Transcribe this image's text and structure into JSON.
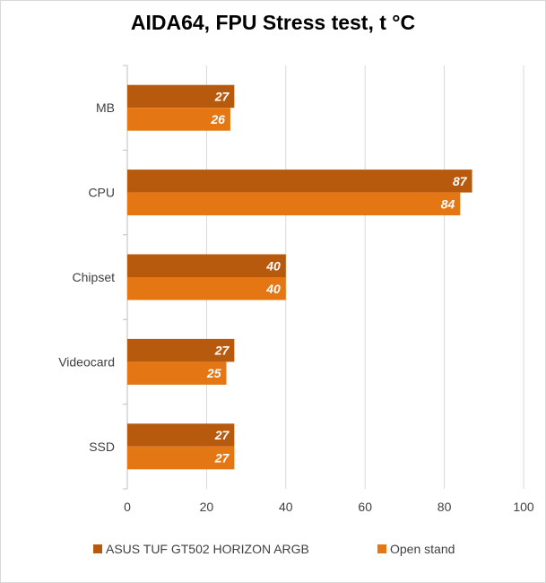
{
  "chart_data": {
    "type": "bar",
    "orientation": "horizontal",
    "title": "AIDA64, FPU Stress test, t °C",
    "categories": [
      "MB",
      "CPU",
      "Chipset",
      "Videocard",
      "SSD"
    ],
    "series": [
      {
        "name": "ASUS TUF GT502 HORIZON ARGB",
        "color": "#b85a0e",
        "values": [
          27,
          87,
          40,
          27,
          27
        ]
      },
      {
        "name": "Open stand",
        "color": "#e47714",
        "values": [
          26,
          84,
          40,
          25,
          27
        ]
      }
    ],
    "xlim": [
      0,
      100
    ],
    "xticks": [
      0,
      20,
      40,
      60,
      80,
      100
    ],
    "grid": true,
    "legend_position": "bottom",
    "data_labels": true
  }
}
